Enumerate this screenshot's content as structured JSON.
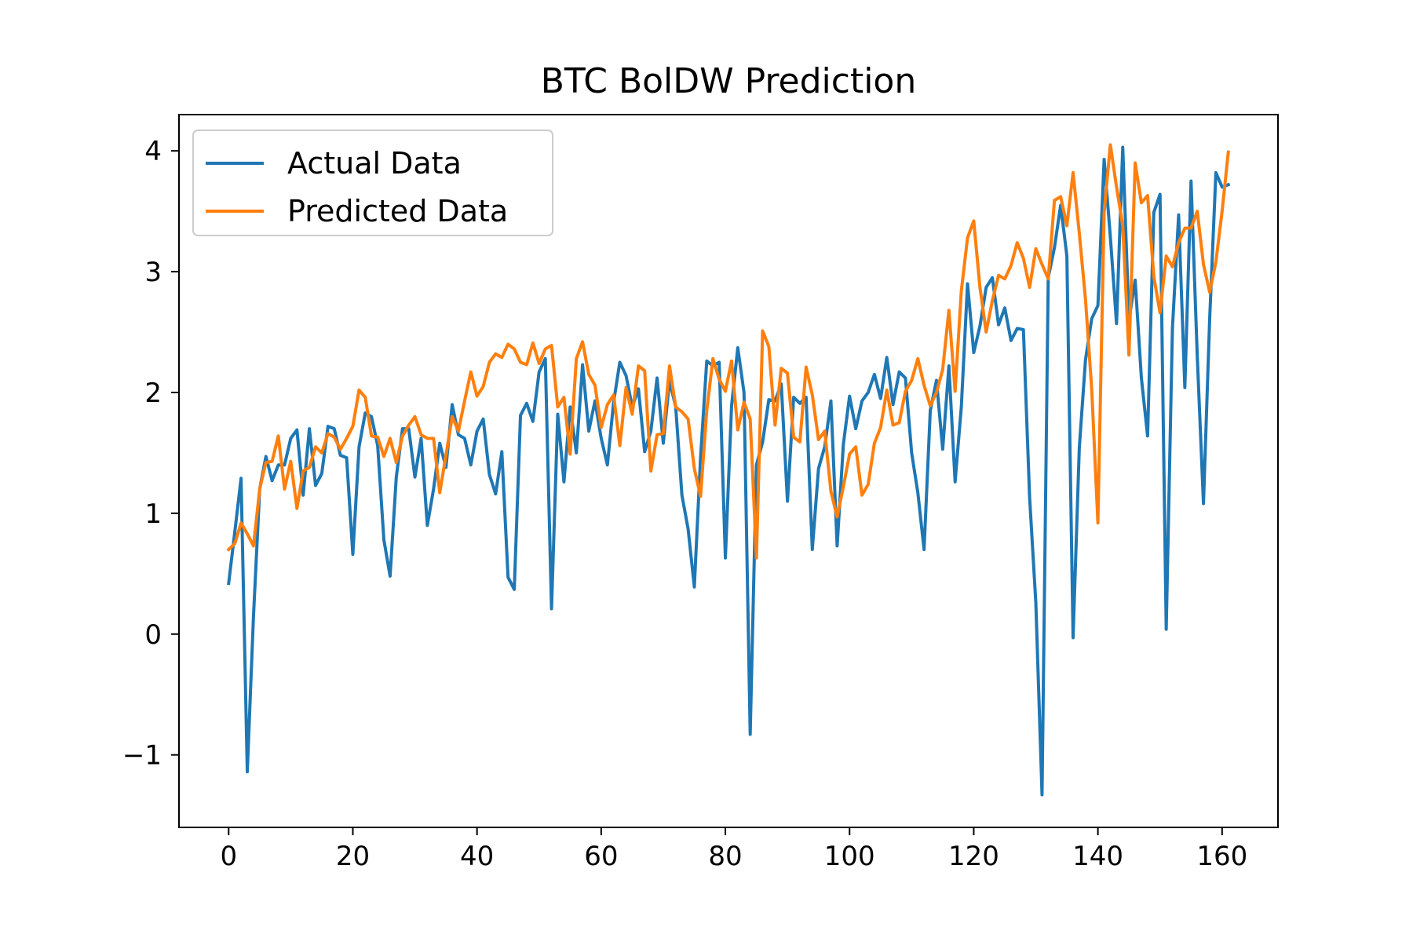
{
  "chart_data": {
    "type": "line",
    "title": "BTC BolDW Prediction",
    "xlabel": "",
    "ylabel": "",
    "xlim": [
      -8,
      169
    ],
    "ylim": [
      -1.6,
      4.3
    ],
    "xticks": [
      0,
      20,
      40,
      60,
      80,
      100,
      120,
      140,
      160
    ],
    "yticks": [
      -1,
      0,
      1,
      2,
      3,
      4
    ],
    "ytick_labels": [
      "−1",
      "0",
      "1",
      "2",
      "3",
      "4"
    ],
    "grid": false,
    "legend": {
      "position": "upper-left"
    },
    "series": [
      {
        "name": "Actual Data",
        "color": "#1f77b4",
        "values": [
          0.42,
          0.85,
          1.29,
          -1.14,
          0.15,
          1.2,
          1.47,
          1.27,
          1.4,
          1.4,
          1.62,
          1.69,
          1.15,
          1.7,
          1.23,
          1.33,
          1.72,
          1.7,
          1.48,
          1.46,
          0.66,
          1.55,
          1.83,
          1.8,
          1.56,
          0.78,
          0.48,
          1.3,
          1.7,
          1.7,
          1.3,
          1.62,
          0.9,
          1.2,
          1.58,
          1.38,
          1.9,
          1.65,
          1.62,
          1.4,
          1.68,
          1.78,
          1.32,
          1.16,
          1.51,
          0.47,
          0.37,
          1.81,
          1.91,
          1.76,
          2.17,
          2.28,
          0.21,
          1.82,
          1.26,
          1.88,
          1.5,
          2.23,
          1.68,
          1.93,
          1.62,
          1.4,
          1.92,
          2.25,
          2.14,
          1.88,
          2.03,
          1.51,
          1.68,
          2.12,
          1.58,
          2.1,
          1.88,
          1.15,
          0.87,
          0.39,
          1.46,
          2.26,
          2.22,
          2.25,
          0.63,
          1.89,
          2.37,
          2.0,
          -0.83,
          1.4,
          1.59,
          1.94,
          1.93,
          2.07,
          1.1,
          1.96,
          1.91,
          1.96,
          0.7,
          1.37,
          1.55,
          1.93,
          0.73,
          1.57,
          1.97,
          1.7,
          1.93,
          2.0,
          2.15,
          1.95,
          2.29,
          1.9,
          2.17,
          2.12,
          1.5,
          1.17,
          0.7,
          1.85,
          2.1,
          1.53,
          2.22,
          1.26,
          1.88,
          2.9,
          2.33,
          2.55,
          2.87,
          2.95,
          2.56,
          2.7,
          2.43,
          2.53,
          2.52,
          1.13,
          0.26,
          -1.33,
          2.95,
          3.2,
          3.55,
          3.13,
          -0.03,
          1.54,
          2.27,
          2.61,
          2.72,
          3.93,
          3.29,
          2.57,
          4.03,
          2.6,
          2.93,
          2.12,
          1.64,
          3.49,
          3.64,
          0.04,
          2.53,
          3.47,
          2.04,
          3.75,
          2.3,
          1.08,
          2.61,
          3.82,
          3.7,
          3.72
        ]
      },
      {
        "name": "Predicted Data",
        "color": "#ff7f0e",
        "values": [
          0.7,
          0.75,
          0.92,
          0.83,
          0.73,
          1.2,
          1.42,
          1.43,
          1.64,
          1.2,
          1.43,
          1.04,
          1.35,
          1.38,
          1.55,
          1.5,
          1.66,
          1.63,
          1.53,
          1.62,
          1.72,
          2.02,
          1.96,
          1.64,
          1.63,
          1.47,
          1.62,
          1.42,
          1.64,
          1.73,
          1.8,
          1.65,
          1.62,
          1.62,
          1.17,
          1.48,
          1.8,
          1.68,
          1.93,
          2.17,
          1.97,
          2.05,
          2.25,
          2.32,
          2.29,
          2.4,
          2.36,
          2.25,
          2.23,
          2.41,
          2.24,
          2.36,
          2.39,
          1.88,
          1.96,
          1.49,
          2.28,
          2.42,
          2.15,
          2.06,
          1.71,
          1.9,
          1.98,
          1.56,
          2.04,
          1.82,
          2.22,
          2.18,
          1.35,
          1.65,
          1.66,
          2.22,
          1.88,
          1.84,
          1.78,
          1.37,
          1.14,
          1.85,
          2.28,
          2.11,
          2.01,
          2.26,
          1.69,
          1.92,
          1.78,
          0.63,
          2.51,
          2.38,
          1.73,
          2.2,
          2.16,
          1.63,
          1.59,
          2.21,
          1.98,
          1.61,
          1.68,
          1.18,
          0.97,
          1.22,
          1.49,
          1.55,
          1.15,
          1.24,
          1.58,
          1.71,
          2.02,
          1.73,
          1.75,
          2.01,
          2.1,
          2.28,
          2.06,
          1.89,
          2.0,
          2.19,
          2.68,
          2.01,
          2.84,
          3.28,
          3.42,
          2.87,
          2.5,
          2.76,
          2.97,
          2.94,
          3.05,
          3.24,
          3.11,
          2.87,
          3.19,
          3.06,
          2.94,
          3.59,
          3.62,
          3.38,
          3.82,
          3.32,
          2.77,
          2.03,
          0.92,
          3.49,
          4.05,
          3.7,
          3.38,
          2.31,
          3.9,
          3.57,
          3.63,
          2.96,
          2.66,
          3.13,
          3.04,
          3.24,
          3.36,
          3.36,
          3.5,
          3.06,
          2.83,
          3.08,
          3.5,
          3.99
        ]
      }
    ]
  }
}
